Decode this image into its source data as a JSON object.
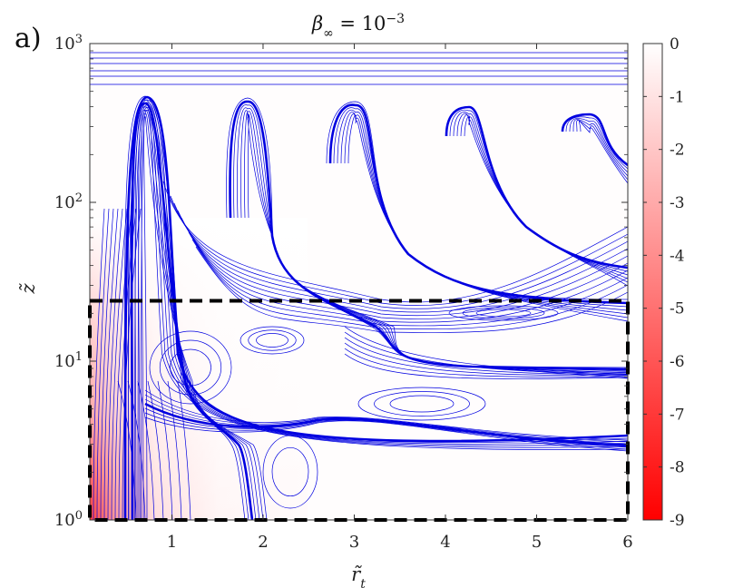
{
  "chart_data": {
    "type": "contour",
    "panel_label": "a)",
    "title": "β∞ = 10−3",
    "title_parts": {
      "base": "β",
      "sub": "∞",
      "mid": " = 10",
      "sup": "−3"
    },
    "xlabel": "r̃t",
    "xlabel_parts": {
      "base": "r̃",
      "sub": "t"
    },
    "ylabel": "z̃",
    "xlim": [
      0.1,
      6
    ],
    "ylim": [
      1,
      1000
    ],
    "yscale": "log",
    "x_ticks": [
      {
        "value": 1,
        "label": "1"
      },
      {
        "value": 2,
        "label": "2"
      },
      {
        "value": 3,
        "label": "3"
      },
      {
        "value": 4,
        "label": "4"
      },
      {
        "value": 5,
        "label": "5"
      },
      {
        "value": 6,
        "label": "6"
      }
    ],
    "y_ticks": [
      {
        "value": 1,
        "base": "10",
        "exp": "0"
      },
      {
        "value": 10,
        "base": "10",
        "exp": "1"
      },
      {
        "value": 100,
        "base": "10",
        "exp": "2"
      },
      {
        "value": 1000,
        "base": "10",
        "exp": "3"
      }
    ],
    "colorbar": {
      "min": -9,
      "max": 0,
      "ticks": [
        {
          "value": 0,
          "label": "0"
        },
        {
          "value": -1,
          "label": "-1"
        },
        {
          "value": -2,
          "label": "-2"
        },
        {
          "value": -3,
          "label": "-3"
        },
        {
          "value": -4,
          "label": "-4"
        },
        {
          "value": -5,
          "label": "-5"
        },
        {
          "value": -6,
          "label": "-6"
        },
        {
          "value": -7,
          "label": "-7"
        },
        {
          "value": -8,
          "label": "-8"
        },
        {
          "value": -9,
          "label": "-9"
        }
      ],
      "colors": [
        "#ff0000",
        "#ffffff"
      ]
    },
    "contour_color": "#0000e0",
    "frame_color": "#000000",
    "dashed_box": {
      "x_range": [
        0.1,
        6
      ],
      "y_range": [
        1,
        24
      ]
    }
  }
}
